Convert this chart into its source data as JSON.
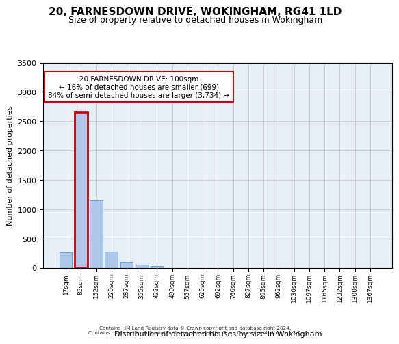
{
  "title": "20, FARNESDOWN DRIVE, WOKINGHAM, RG41 1LD",
  "subtitle": "Size of property relative to detached houses in Wokingham",
  "xlabel": "Distribution of detached houses by size in Wokingham",
  "ylabel": "Number of detached properties",
  "bar_values": [
    265,
    2650,
    1145,
    280,
    100,
    55,
    35,
    0,
    0,
    0,
    0,
    0,
    0,
    0,
    0,
    0,
    0,
    0,
    0,
    0,
    0
  ],
  "bar_labels": [
    "17sqm",
    "85sqm",
    "152sqm",
    "220sqm",
    "287sqm",
    "355sqm",
    "422sqm",
    "490sqm",
    "557sqm",
    "625sqm",
    "692sqm",
    "760sqm",
    "827sqm",
    "895sqm",
    "962sqm",
    "1030sqm",
    "1097sqm",
    "1165sqm",
    "1232sqm",
    "1300sqm",
    "1367sqm"
  ],
  "bar_color": "#aec6e8",
  "bar_edge_color": "#6a9fd8",
  "annotation_text": "20 FARNESDOWN DRIVE: 100sqm\n← 16% of detached houses are smaller (699)\n84% of semi-detached houses are larger (3,734) →",
  "annotation_box_color": "#ffffff",
  "annotation_border_color": "#cc0000",
  "property_bar_index": 1,
  "property_bar_outline_color": "#cc0000",
  "ylim": [
    0,
    3500
  ],
  "yticks": [
    0,
    500,
    1000,
    1500,
    2000,
    2500,
    3000,
    3500
  ],
  "grid_color": "#cccccc",
  "background_color": "#e8eef8",
  "footer_line1": "Contains HM Land Registry data © Crown copyright and database right 2024.",
  "footer_line2": "Contains public sector information licensed under the Open Government Licence v3.0."
}
